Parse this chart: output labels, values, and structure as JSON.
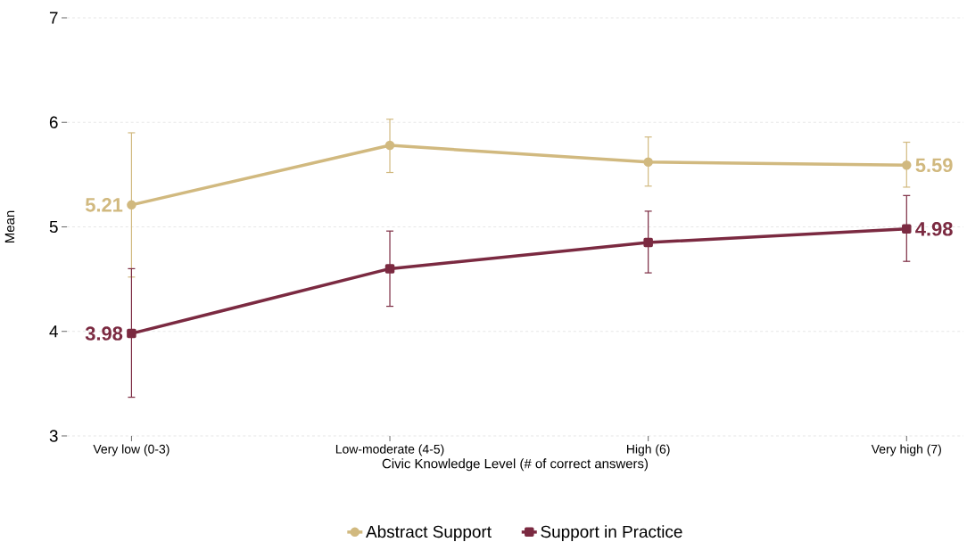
{
  "chart_data": {
    "type": "line",
    "xlabel": "Civic Knowledge Level (# of correct answers)",
    "ylabel": "Mean",
    "categories": [
      "Very low (0-3)",
      "Low-moderate (4-5)",
      "High (6)",
      "Very high (7)"
    ],
    "ylim": [
      3,
      7
    ],
    "yticks": [
      3,
      4,
      5,
      6,
      7
    ],
    "grid": "y",
    "legend": "bottom",
    "series": [
      {
        "name": "Abstract Support",
        "color": "#d1b97f",
        "marker": "circle",
        "values": [
          5.21,
          5.78,
          5.62,
          5.59
        ],
        "errors": [
          [
            4.52,
            5.9
          ],
          [
            5.52,
            6.03
          ],
          [
            5.39,
            5.86
          ],
          [
            5.38,
            5.81
          ]
        ],
        "value_labels": [
          "5.21",
          null,
          null,
          "5.59"
        ]
      },
      {
        "name": "Support in Practice",
        "color": "#7b2a41",
        "marker": "square",
        "values": [
          3.98,
          4.6,
          4.85,
          4.98
        ],
        "errors": [
          [
            3.37,
            4.6
          ],
          [
            4.24,
            4.96
          ],
          [
            4.56,
            5.15
          ],
          [
            4.67,
            5.3
          ]
        ],
        "value_labels": [
          "3.98",
          null,
          null,
          "4.98"
        ]
      }
    ]
  }
}
